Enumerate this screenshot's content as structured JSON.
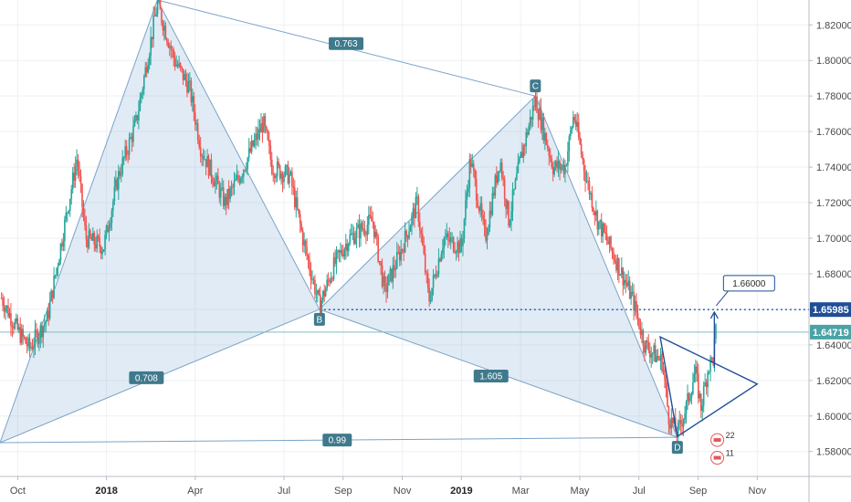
{
  "chart_data": {
    "type": "candlestick",
    "y_ticks": [
      "1.82000",
      "1.80000",
      "1.78000",
      "1.76000",
      "1.74000",
      "1.72000",
      "1.70000",
      "1.68000",
      "1.66000",
      "1.64000",
      "1.62000",
      "1.60000",
      "1.58000"
    ],
    "y_values": [
      1.82,
      1.8,
      1.78,
      1.76,
      1.74,
      1.72,
      1.7,
      1.68,
      1.66,
      1.64,
      1.62,
      1.6,
      1.58
    ],
    "ylim": [
      1.566,
      1.834
    ],
    "x_ticks": [
      {
        "label": "Oct",
        "t": 0,
        "bold": false
      },
      {
        "label": "2018",
        "t": 3,
        "bold": true
      },
      {
        "label": "Apr",
        "t": 6,
        "bold": false
      },
      {
        "label": "Jul",
        "t": 9,
        "bold": false
      },
      {
        "label": "Sep",
        "t": 11,
        "bold": false
      },
      {
        "label": "Nov",
        "t": 13,
        "bold": false
      },
      {
        "label": "2019",
        "t": 15,
        "bold": true
      },
      {
        "label": "Mar",
        "t": 17,
        "bold": false
      },
      {
        "label": "May",
        "t": 19,
        "bold": false
      },
      {
        "label": "Jul",
        "t": 21,
        "bold": false
      },
      {
        "label": "Sep",
        "t": 23,
        "bold": false
      },
      {
        "label": "Nov",
        "t": 25,
        "bold": false
      }
    ],
    "xlim": [
      -0.6,
      26.75
    ],
    "pattern": {
      "points": [
        {
          "name": "X",
          "t": -0.6,
          "price": 1.585,
          "label": ""
        },
        {
          "name": "A",
          "t": 4.72,
          "price": 1.834,
          "label": ""
        },
        {
          "name": "B",
          "t": 10.2,
          "price": 1.66,
          "label": "B"
        },
        {
          "name": "C",
          "t": 17.5,
          "price": 1.78,
          "label": "C"
        },
        {
          "name": "D",
          "t": 22.3,
          "price": 1.588,
          "label": "D"
        }
      ],
      "ratios": [
        {
          "label": "0.763",
          "t": 11.1,
          "price": 1.8095
        },
        {
          "label": "0.708",
          "t": 4.35,
          "price": 1.6215
        },
        {
          "label": "1.605",
          "t": 16.0,
          "price": 1.6225
        },
        {
          "label": "0.99",
          "t": 10.8,
          "price": 1.5865
        }
      ]
    },
    "triangle": [
      {
        "t": 21.72,
        "price": 1.6445
      },
      {
        "t": 25.0,
        "price": 1.618
      },
      {
        "t": 22.3,
        "price": 1.5885
      }
    ],
    "target": {
      "label": "1.66000",
      "price": 1.66,
      "from_t": 23.55,
      "from_price": 1.627
    },
    "horizontal_levels": [
      {
        "label": "1.65985",
        "price": 1.65985,
        "style": "dotted",
        "from_t": 10.2
      },
      {
        "label": "1.64719",
        "price": 1.64719,
        "style": "solid",
        "from_t": -0.6
      }
    ],
    "events": [
      {
        "label": "22",
        "t": 23.65,
        "price": 1.5865
      },
      {
        "label": "11",
        "t": 23.65,
        "price": 1.5765
      }
    ],
    "anchors": [
      {
        "t": -0.6,
        "price": 1.668
      },
      {
        "t": 0.0,
        "price": 1.648
      },
      {
        "t": 0.4,
        "price": 1.638
      },
      {
        "t": 1.0,
        "price": 1.655
      },
      {
        "t": 1.5,
        "price": 1.7
      },
      {
        "t": 2.0,
        "price": 1.745
      },
      {
        "t": 2.3,
        "price": 1.7
      },
      {
        "t": 2.9,
        "price": 1.695
      },
      {
        "t": 3.4,
        "price": 1.735
      },
      {
        "t": 4.0,
        "price": 1.765
      },
      {
        "t": 4.72,
        "price": 1.832
      },
      {
        "t": 5.3,
        "price": 1.8
      },
      {
        "t": 5.8,
        "price": 1.785
      },
      {
        "t": 6.2,
        "price": 1.75
      },
      {
        "t": 7.0,
        "price": 1.72
      },
      {
        "t": 7.5,
        "price": 1.735
      },
      {
        "t": 8.3,
        "price": 1.765
      },
      {
        "t": 8.6,
        "price": 1.74
      },
      {
        "t": 9.2,
        "price": 1.735
      },
      {
        "t": 9.7,
        "price": 1.695
      },
      {
        "t": 10.2,
        "price": 1.662
      },
      {
        "t": 10.7,
        "price": 1.685
      },
      {
        "t": 11.2,
        "price": 1.7
      },
      {
        "t": 12.0,
        "price": 1.71
      },
      {
        "t": 12.4,
        "price": 1.67
      },
      {
        "t": 13.0,
        "price": 1.695
      },
      {
        "t": 13.5,
        "price": 1.72
      },
      {
        "t": 13.9,
        "price": 1.665
      },
      {
        "t": 14.4,
        "price": 1.7
      },
      {
        "t": 15.0,
        "price": 1.695
      },
      {
        "t": 15.3,
        "price": 1.745
      },
      {
        "t": 15.8,
        "price": 1.7
      },
      {
        "t": 16.3,
        "price": 1.745
      },
      {
        "t": 16.6,
        "price": 1.71
      },
      {
        "t": 17.0,
        "price": 1.745
      },
      {
        "t": 17.5,
        "price": 1.778
      },
      {
        "t": 18.1,
        "price": 1.74
      },
      {
        "t": 18.5,
        "price": 1.74
      },
      {
        "t": 18.8,
        "price": 1.77
      },
      {
        "t": 19.2,
        "price": 1.735
      },
      {
        "t": 19.6,
        "price": 1.71
      },
      {
        "t": 20.3,
        "price": 1.685
      },
      {
        "t": 20.8,
        "price": 1.665
      },
      {
        "t": 21.2,
        "price": 1.64
      },
      {
        "t": 21.8,
        "price": 1.63
      },
      {
        "t": 22.0,
        "price": 1.6
      },
      {
        "t": 22.3,
        "price": 1.59
      },
      {
        "t": 22.6,
        "price": 1.605
      },
      {
        "t": 22.9,
        "price": 1.625
      },
      {
        "t": 23.1,
        "price": 1.605
      },
      {
        "t": 23.35,
        "price": 1.628
      },
      {
        "t": 23.5,
        "price": 1.632
      },
      {
        "t": 23.6,
        "price": 1.647
      }
    ]
  }
}
